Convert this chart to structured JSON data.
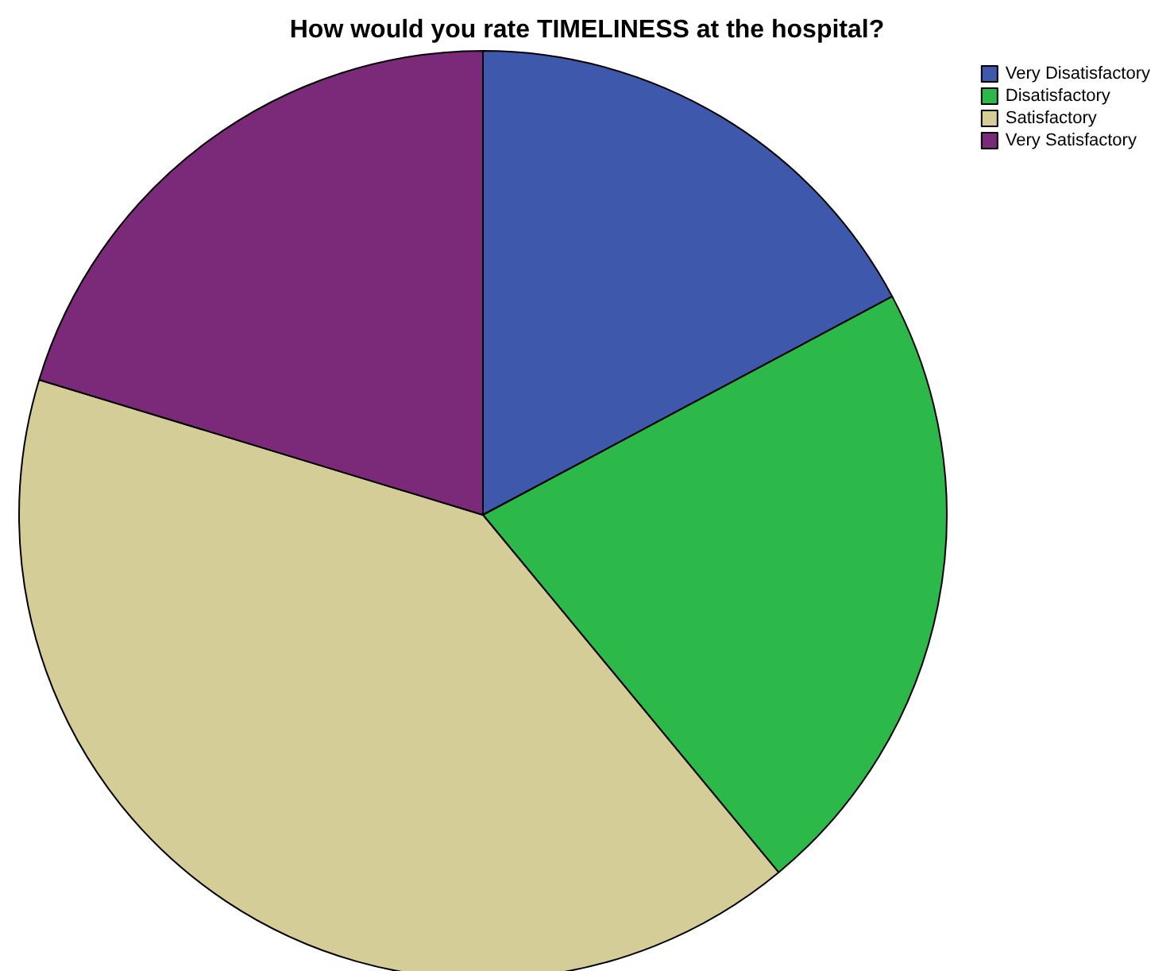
{
  "chart_data": {
    "type": "pie",
    "title": "How would you rate TIMELINESS at the hospital?",
    "categories": [
      "Very Disatisfactory",
      "Disatisfactory",
      "Satisfactory",
      "Very Satisfactory"
    ],
    "values": [
      17.2,
      21.8,
      40.7,
      20.3
    ],
    "colors": [
      "#3e58ac",
      "#2db84a",
      "#d4cd97",
      "#7b2a7a"
    ],
    "legend": "top right"
  }
}
